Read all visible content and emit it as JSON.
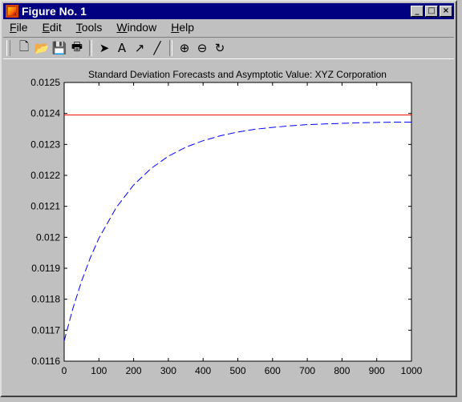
{
  "window": {
    "title": "Figure No. 1",
    "buttons": {
      "minimize": "_",
      "maximize": "□",
      "close": "×"
    }
  },
  "menu": [
    "File",
    "Edit",
    "Tools",
    "Window",
    "Help"
  ],
  "toolbar": {
    "groups": [
      [
        {
          "name": "new-file-icon",
          "glyph": "🗋"
        },
        {
          "name": "open-folder-icon",
          "glyph": "📂"
        },
        {
          "name": "save-icon",
          "glyph": "💾"
        },
        {
          "name": "print-icon",
          "glyph": "🖶"
        }
      ],
      [
        {
          "name": "select-arrow-icon",
          "glyph": "➤"
        },
        {
          "name": "insert-text-icon",
          "glyph": "A"
        },
        {
          "name": "insert-arrow-icon",
          "glyph": "↗"
        },
        {
          "name": "insert-line-icon",
          "glyph": "╱"
        }
      ],
      [
        {
          "name": "zoom-in-icon",
          "glyph": "⊕"
        },
        {
          "name": "zoom-out-icon",
          "glyph": "⊖"
        },
        {
          "name": "rotate-icon",
          "glyph": "↻"
        }
      ]
    ]
  },
  "chart_data": {
    "type": "line",
    "title": "Standard Deviation Forecasts and Asymptotic Value: XYZ Corporation",
    "xlabel": "",
    "ylabel": "",
    "xlim": [
      0,
      1000
    ],
    "ylim": [
      0.0116,
      0.0125
    ],
    "xticks": [
      0,
      100,
      200,
      300,
      400,
      500,
      600,
      700,
      800,
      900,
      1000
    ],
    "yticks": [
      0.0116,
      0.0117,
      0.0118,
      0.0119,
      0.012,
      0.0121,
      0.0122,
      0.0123,
      0.0124,
      0.0125
    ],
    "ytick_labels": [
      "0.0116",
      "0.0117",
      "0.0118",
      "0.0119",
      "0.012",
      "0.0121",
      "0.0122",
      "0.0123",
      "0.0124",
      "0.0125"
    ],
    "grid": false,
    "series": [
      {
        "style": "dashed",
        "color": "#0000ff",
        "x": [
          0,
          25,
          50,
          75,
          100,
          150,
          200,
          250,
          300,
          350,
          400,
          450,
          500,
          550,
          600,
          650,
          700,
          750,
          800,
          850,
          900,
          950,
          1000
        ],
        "y": [
          0.011665,
          0.01177,
          0.011858,
          0.011933,
          0.011997,
          0.012096,
          0.012169,
          0.012222,
          0.012262,
          0.012291,
          0.012312,
          0.012328,
          0.01234,
          0.012349,
          0.012355,
          0.01236,
          0.012364,
          0.012366,
          0.012368,
          0.01237,
          0.012371,
          0.012372,
          0.012372
        ]
      },
      {
        "style": "solid",
        "color": "#ff0000",
        "x": [
          0,
          1000
        ],
        "y": [
          0.012395,
          0.012395
        ]
      }
    ]
  }
}
